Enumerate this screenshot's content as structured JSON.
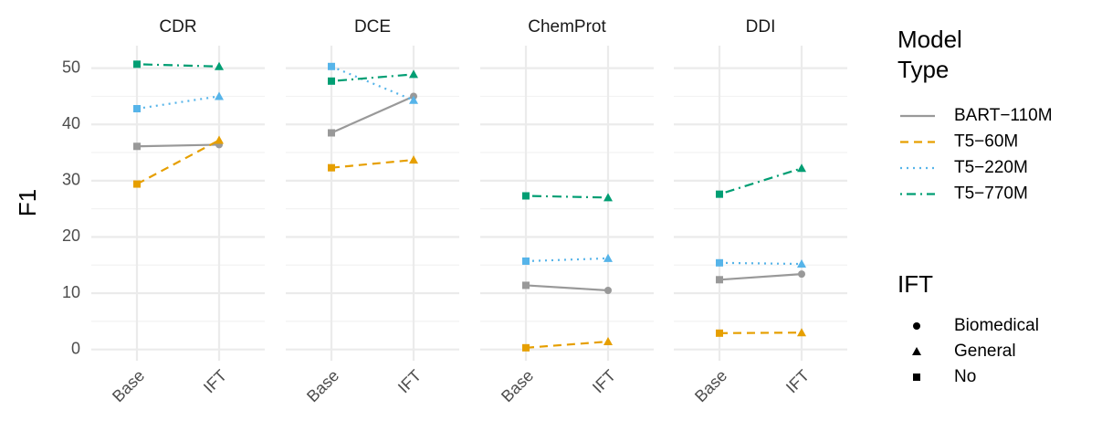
{
  "chart_data": [
    {
      "type": "line",
      "title": "CDR",
      "y_label": "F1",
      "categories": [
        "Base",
        "IFT"
      ],
      "ylim": [
        -2,
        54
      ],
      "yticks": [
        0,
        10,
        20,
        30,
        40,
        50
      ],
      "grid": true,
      "series": [
        {
          "name": "BART−110M",
          "color": "#999999",
          "dash": "solid",
          "shapes": [
            "square",
            "circle"
          ],
          "values": [
            36.1,
            36.4
          ]
        },
        {
          "name": "T5−60M",
          "color": "#E69F00",
          "dash": "dashed",
          "shapes": [
            "square",
            "triangle"
          ],
          "values": [
            29.4,
            37.2
          ]
        },
        {
          "name": "T5−220M",
          "color": "#56B4E9",
          "dash": "dotted",
          "shapes": [
            "square",
            "triangle"
          ],
          "values": [
            42.8,
            45.0
          ]
        },
        {
          "name": "T5−770M",
          "color": "#009E73",
          "dash": "dotdash",
          "shapes": [
            "square",
            "triangle"
          ],
          "values": [
            50.7,
            50.3
          ]
        }
      ]
    },
    {
      "type": "line",
      "title": "DCE",
      "categories": [
        "Base",
        "IFT"
      ],
      "ylim": [
        -2,
        54
      ],
      "yticks": [
        0,
        10,
        20,
        30,
        40,
        50
      ],
      "grid": true,
      "series": [
        {
          "name": "BART−110M",
          "color": "#999999",
          "dash": "solid",
          "shapes": [
            "square",
            "circle"
          ],
          "values": [
            38.5,
            45.0
          ]
        },
        {
          "name": "T5−60M",
          "color": "#E69F00",
          "dash": "dashed",
          "shapes": [
            "square",
            "triangle"
          ],
          "values": [
            32.3,
            33.7
          ]
        },
        {
          "name": "T5−220M",
          "color": "#56B4E9",
          "dash": "dotted",
          "shapes": [
            "square",
            "triangle"
          ],
          "values": [
            50.3,
            44.3
          ]
        },
        {
          "name": "T5−770M",
          "color": "#009E73",
          "dash": "dotdash",
          "shapes": [
            "square",
            "triangle"
          ],
          "values": [
            47.7,
            48.9
          ]
        }
      ]
    },
    {
      "type": "line",
      "title": "ChemProt",
      "categories": [
        "Base",
        "IFT"
      ],
      "ylim": [
        -2,
        54
      ],
      "yticks": [
        0,
        10,
        20,
        30,
        40,
        50
      ],
      "grid": true,
      "series": [
        {
          "name": "BART−110M",
          "color": "#999999",
          "dash": "solid",
          "shapes": [
            "square",
            "circle"
          ],
          "values": [
            11.4,
            10.5
          ]
        },
        {
          "name": "T5−60M",
          "color": "#E69F00",
          "dash": "dashed",
          "shapes": [
            "square",
            "triangle"
          ],
          "values": [
            0.3,
            1.4
          ]
        },
        {
          "name": "T5−220M",
          "color": "#56B4E9",
          "dash": "dotted",
          "shapes": [
            "square",
            "triangle"
          ],
          "values": [
            15.7,
            16.2
          ]
        },
        {
          "name": "T5−770M",
          "color": "#009E73",
          "dash": "dotdash",
          "shapes": [
            "square",
            "triangle"
          ],
          "values": [
            27.3,
            27.0
          ]
        }
      ]
    },
    {
      "type": "line",
      "title": "DDI",
      "categories": [
        "Base",
        "IFT"
      ],
      "ylim": [
        -2,
        54
      ],
      "yticks": [
        0,
        10,
        20,
        30,
        40,
        50
      ],
      "grid": true,
      "series": [
        {
          "name": "BART−110M",
          "color": "#999999",
          "dash": "solid",
          "shapes": [
            "square",
            "circle"
          ],
          "values": [
            12.4,
            13.4
          ]
        },
        {
          "name": "T5−60M",
          "color": "#E69F00",
          "dash": "dashed",
          "shapes": [
            "square",
            "triangle"
          ],
          "values": [
            2.9,
            3.0
          ]
        },
        {
          "name": "T5−220M",
          "color": "#56B4E9",
          "dash": "dotted",
          "shapes": [
            "square",
            "triangle"
          ],
          "values": [
            15.4,
            15.2
          ]
        },
        {
          "name": "T5−770M",
          "color": "#009E73",
          "dash": "dotdash",
          "shapes": [
            "square",
            "triangle"
          ],
          "values": [
            27.6,
            32.2
          ]
        }
      ]
    }
  ],
  "legend": {
    "title": [
      "Model",
      "Type"
    ]
  },
  "shape_legend": {
    "title": "IFT",
    "entries": [
      {
        "name": "Biomedical",
        "shape": "circle"
      },
      {
        "name": "General",
        "shape": "triangle"
      },
      {
        "name": "No",
        "shape": "square"
      }
    ]
  }
}
